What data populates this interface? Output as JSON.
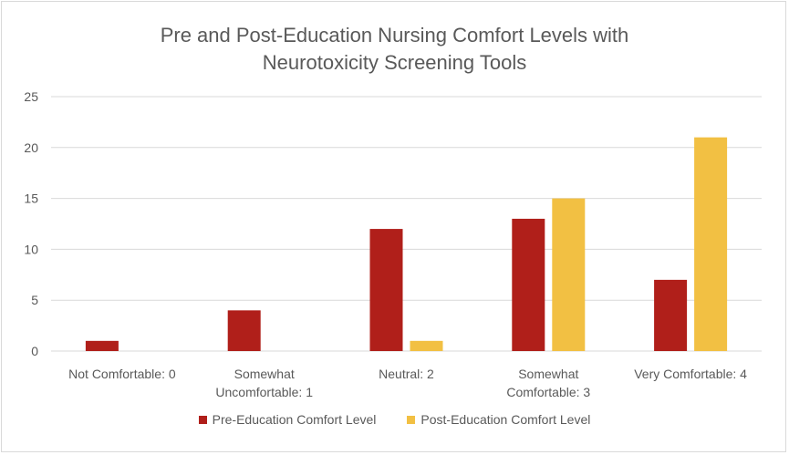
{
  "chart_data": {
    "type": "bar",
    "title_lines": [
      "Pre and Post-Education Nursing Comfort Levels with",
      "Neurotoxicity Screening Tools"
    ],
    "categories": [
      [
        "Not Comfortable: 0"
      ],
      [
        "Somewhat",
        "Uncomfortable: 1"
      ],
      [
        "Neutral: 2"
      ],
      [
        "Somewhat",
        "Comfortable: 3"
      ],
      [
        "Very Comfortable: 4"
      ]
    ],
    "series": [
      {
        "name": "Pre-Education Comfort Level",
        "color": "#b01f1a",
        "values": [
          1,
          4,
          12,
          13,
          7
        ]
      },
      {
        "name": "Post-Education Comfort Level",
        "color": "#f2c043",
        "values": [
          0,
          0,
          1,
          15,
          21
        ]
      }
    ],
    "ylim": [
      0,
      25
    ],
    "yticks": [
      0,
      5,
      10,
      15,
      20,
      25
    ],
    "grid": true,
    "gridColor": "#d9d9d9",
    "legend_position": "bottom"
  }
}
